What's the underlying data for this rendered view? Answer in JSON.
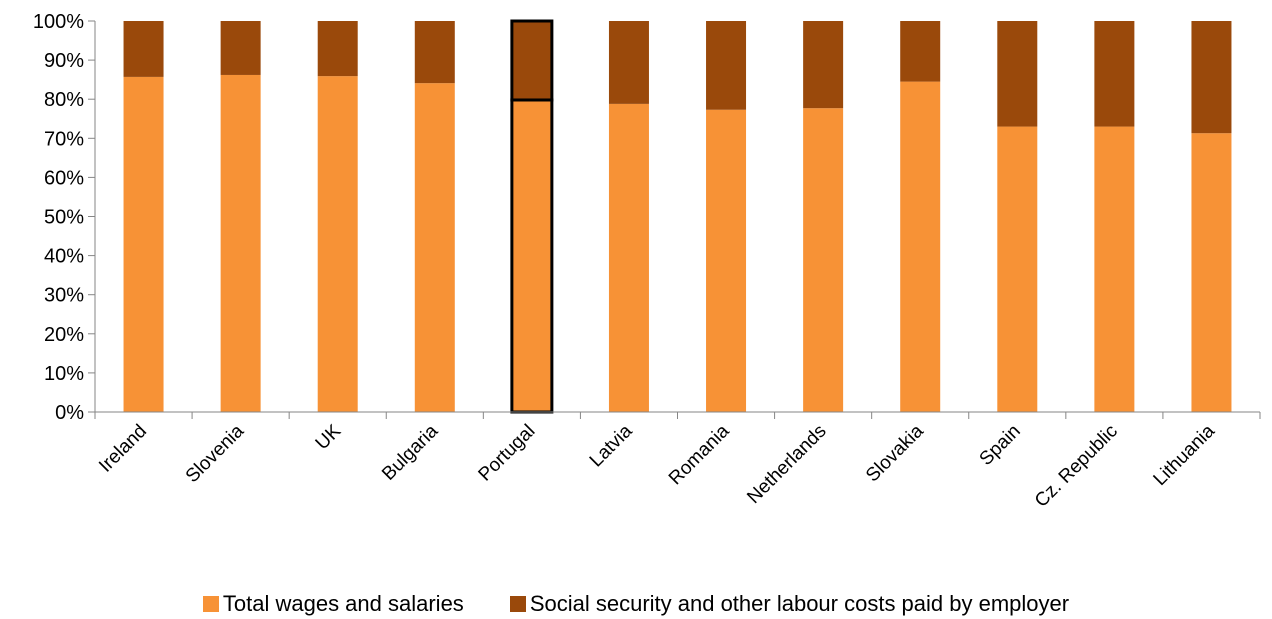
{
  "chart_data": {
    "type": "bar",
    "stacked": true,
    "categories": [
      "Ireland",
      "Slovenia",
      "UK",
      "Bulgaria",
      "Portugal",
      "Latvia",
      "Romania",
      "Netherlands",
      "Slovakia",
      "Spain",
      "Cz. Republic",
      "Lithuania"
    ],
    "series": [
      {
        "name": "Total wages and salaries",
        "color": "#F79236",
        "values": [
          85.7,
          86.2,
          85.9,
          84.1,
          79.8,
          78.8,
          77.3,
          77.7,
          84.5,
          73.0,
          73.0,
          71.3
        ]
      },
      {
        "name": "Social security and other labour costs paid by employer",
        "color": "#9A490B",
        "values": [
          14.3,
          13.8,
          14.1,
          15.9,
          20.2,
          21.2,
          22.7,
          22.3,
          15.5,
          27.0,
          27.0,
          28.7
        ]
      }
    ],
    "highlighted_category": "Portugal",
    "ylim": [
      0,
      100
    ],
    "yticks": [
      "0%",
      "10%",
      "20%",
      "30%",
      "40%",
      "50%",
      "60%",
      "70%",
      "80%",
      "90%",
      "100%"
    ],
    "grid": false,
    "legend_position": "bottom"
  }
}
